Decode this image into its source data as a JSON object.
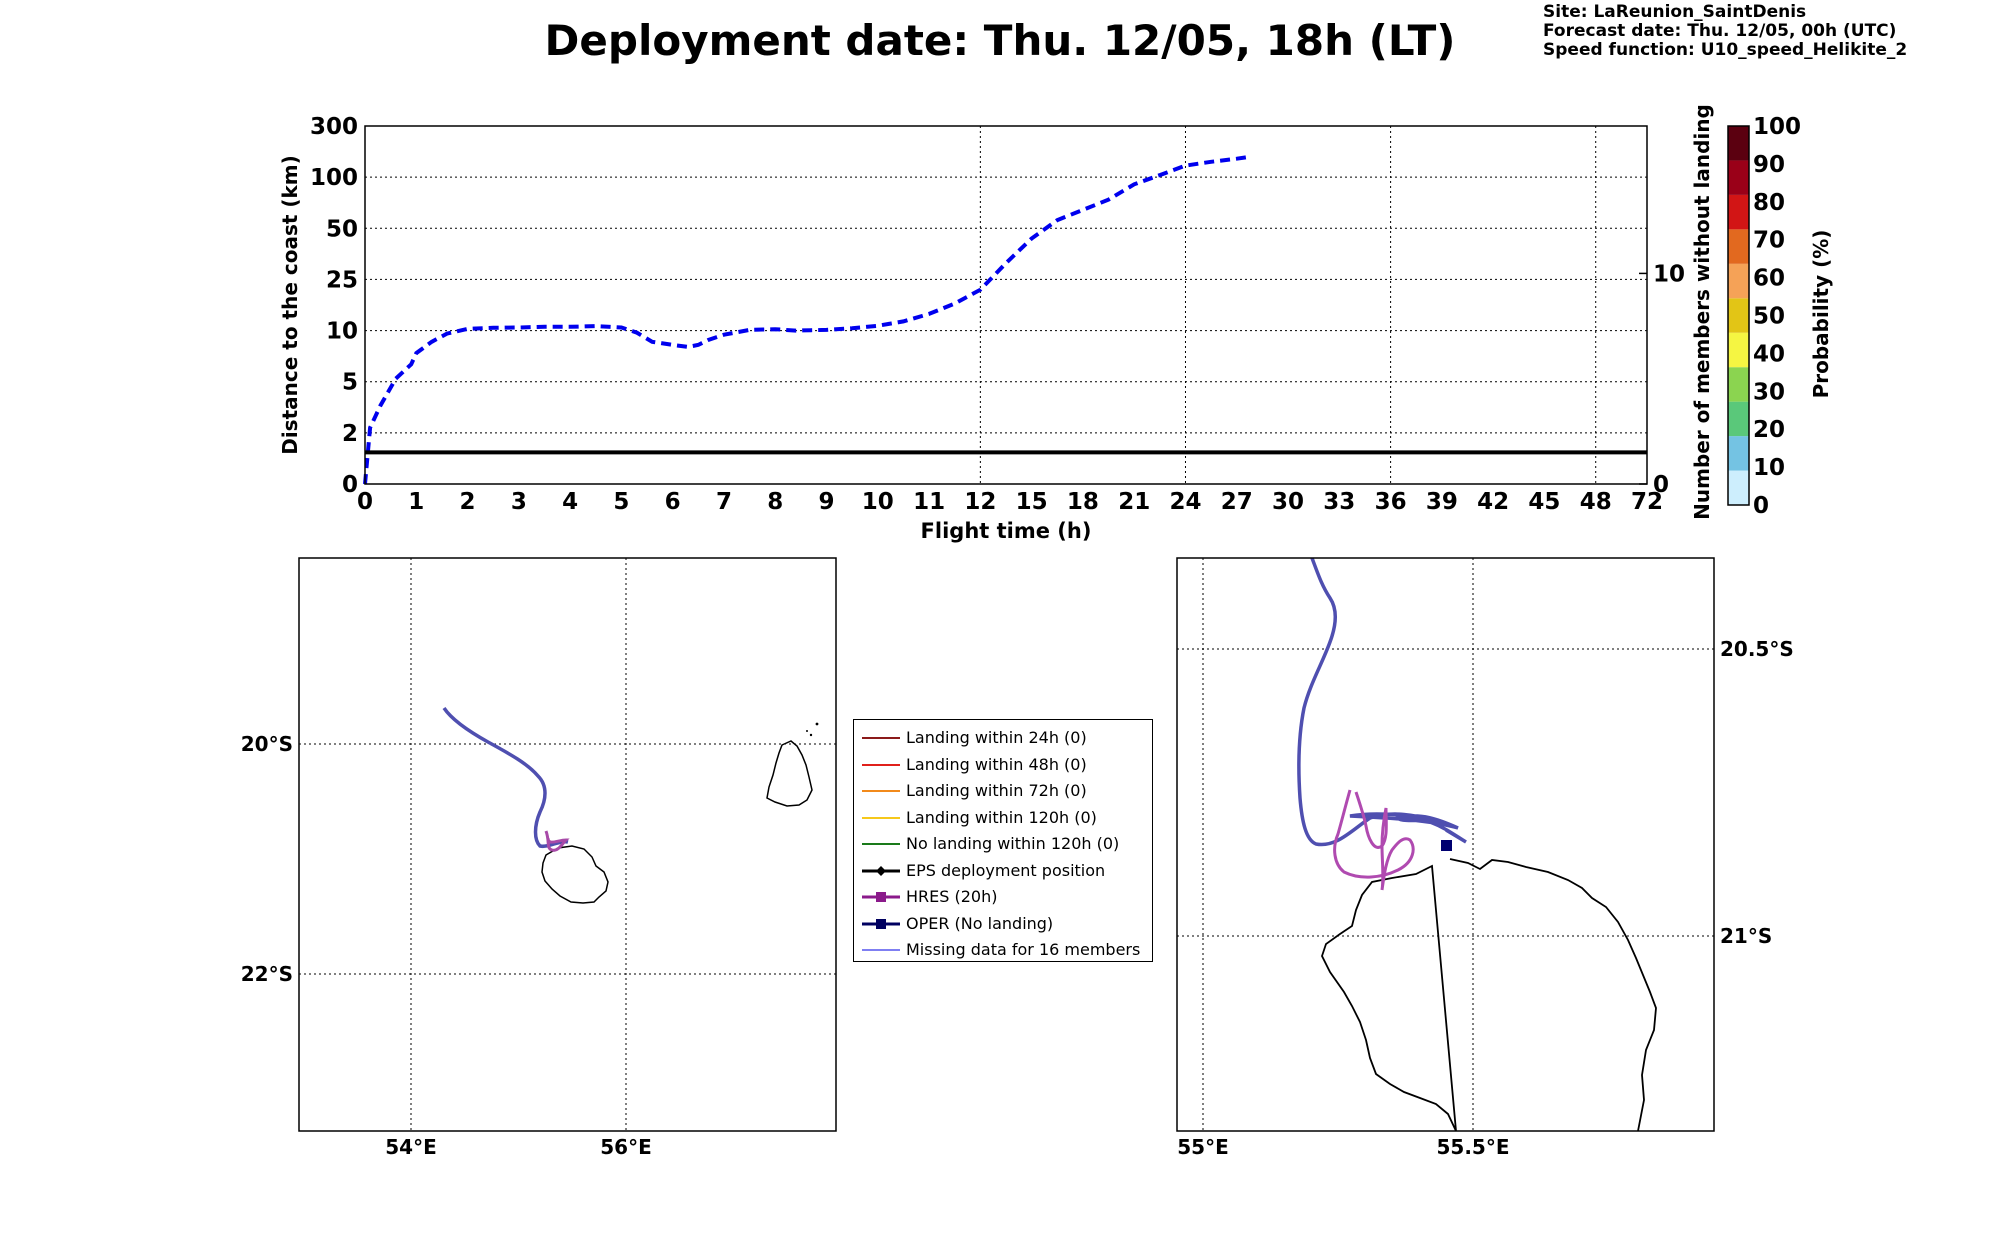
{
  "title": "Deployment date: Thu. 12/05, 18h (LT)",
  "info": {
    "site": "Site: LaReunion_SaintDenis",
    "forecast": "Forecast date: Thu. 12/05, 00h (UTC)",
    "speed": "Speed function: U10_speed_Helikite_2"
  },
  "chart_data": [
    {
      "type": "line",
      "title": "",
      "xlabel": "Flight time (h)",
      "ylabel": "Distance to the coast (km)",
      "y2label": "Number of members without landing",
      "x_ticks": [
        "0",
        "1",
        "2",
        "3",
        "4",
        "5",
        "6",
        "7",
        "8",
        "9",
        "10",
        "11",
        "12",
        "15",
        "18",
        "21",
        "24",
        "27",
        "30",
        "33",
        "36",
        "39",
        "42",
        "45",
        "48",
        "72"
      ],
      "y_ticks": [
        "0",
        "2",
        "5",
        "10",
        "25",
        "50",
        "100",
        "300"
      ],
      "y2_ticks": [
        "0",
        "10"
      ],
      "grid": true,
      "series": [
        {
          "color": "#0000ee",
          "style": "dashed",
          "x": [
            0,
            0.1,
            0.3,
            0.6,
            0.9,
            1.0,
            1.3,
            1.6,
            2.0,
            2.5,
            3.0,
            3.5,
            4.0,
            4.5,
            5.0,
            5.3,
            5.6,
            6.0,
            6.3,
            6.5,
            6.7,
            7.0,
            7.5,
            8.0,
            8.4,
            8.7,
            9.0,
            9.5,
            10.0,
            10.5,
            11.0,
            11.5,
            12.0,
            13.5,
            15.0,
            16.5,
            18.0,
            19.5,
            21.0,
            22.5,
            24.0,
            25.5,
            27.0,
            27.8
          ],
          "y": [
            0,
            2.3,
            3.6,
            5.3,
            6.7,
            7.8,
            8.9,
            9.7,
            10.5,
            10.8,
            10.9,
            11.1,
            11.1,
            11.3,
            10.9,
            9.8,
            8.9,
            8.6,
            8.4,
            8.6,
            9.1,
            9.6,
            10.2,
            10.4,
            10,
            10.1,
            10.2,
            10.7,
            11.4,
            12.7,
            14.9,
            17.9,
            22,
            33,
            45,
            58,
            68,
            78,
            93,
            108,
            145,
            160,
            172,
            180
          ]
        },
        {
          "name": "members without landing",
          "color": "#000000",
          "style": "solid",
          "x": [
            0,
            72
          ],
          "y2": [
            1.5,
            1.5
          ]
        }
      ]
    },
    {
      "type": "heatmap",
      "ylabel": "Probability (%)",
      "ticks": [
        "0",
        "10",
        "20",
        "30",
        "40",
        "50",
        "60",
        "70",
        "80",
        "90",
        "100"
      ],
      "colors": [
        "#cdeefd",
        "#74c3e3",
        "#5ac87a",
        "#8bd450",
        "#f5f542",
        "#e2c516",
        "#f5a257",
        "#e2691f",
        "#d21515",
        "#9a0018",
        "#5b0010"
      ]
    },
    {
      "type": "map",
      "x_ticks": [
        "54°E",
        "56°E"
      ],
      "y_ticks": [
        "20°S",
        "22°S"
      ],
      "grid": true
    },
    {
      "type": "map",
      "x_ticks": [
        "55°E",
        "55.5°E"
      ],
      "y_ticks": [
        "20.5°S",
        "21°S"
      ],
      "grid": true
    }
  ],
  "legend": [
    {
      "label": "Landing within 24h (0)",
      "color": "#8b1a1a",
      "kind": "line"
    },
    {
      "label": "Landing within 48h (0)",
      "color": "#e0201b",
      "kind": "line"
    },
    {
      "label": "Landing within 72h (0)",
      "color": "#f28a1b",
      "kind": "line"
    },
    {
      "label": "Landing within 120h (0)",
      "color": "#f6c81b",
      "kind": "line"
    },
    {
      "label": "No landing within 120h (0)",
      "color": "#1a7a1a",
      "kind": "line"
    },
    {
      "label": "EPS deployment position",
      "color": "#000000",
      "kind": "diamond"
    },
    {
      "label": "HRES (20h)",
      "color": "#8b1a8b",
      "kind": "square"
    },
    {
      "label": "OPER (No landing)",
      "color": "#000060",
      "kind": "square"
    },
    {
      "label": "Missing data for 16 members",
      "color": "#5555ee",
      "kind": "thin"
    }
  ]
}
